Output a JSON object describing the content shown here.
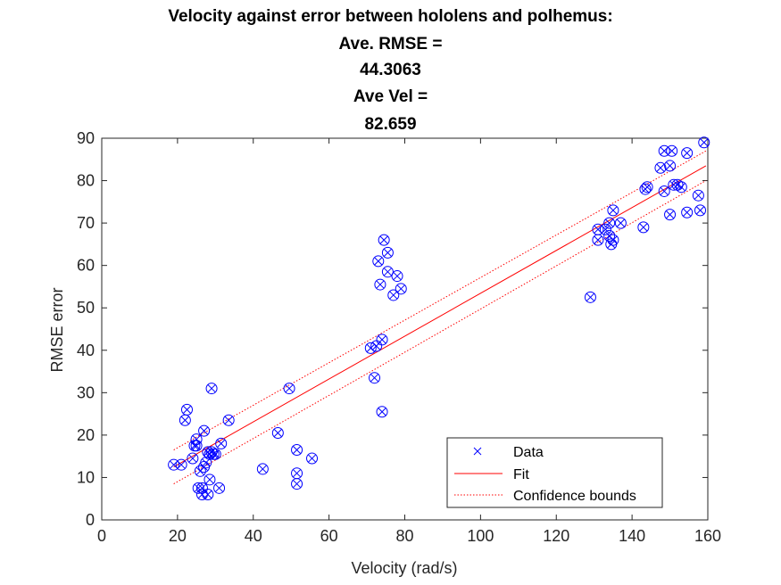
{
  "chart_data": {
    "type": "scatter",
    "title_lines": [
      "Velocity against error between hololens and polhemus:",
      "Ave. RMSE =",
      "44.3063",
      "Ave Vel =",
      "82.659"
    ],
    "xlabel": "Velocity (rad/s)",
    "ylabel": "RMSE error",
    "xlim": [
      0,
      160
    ],
    "ylim": [
      0,
      90
    ],
    "xticks": [
      0,
      20,
      40,
      60,
      80,
      100,
      120,
      140,
      160
    ],
    "yticks": [
      0,
      10,
      20,
      30,
      40,
      50,
      60,
      70,
      80,
      90
    ],
    "grid": false,
    "legend_position": "bottom-right",
    "legend": [
      "Data",
      "Fit",
      "Confidence bounds"
    ],
    "colors": {
      "data": "#0000ff",
      "fit": "#ff0000",
      "bounds": "#ff0000",
      "axis": "#262626"
    },
    "series": [
      {
        "name": "Data",
        "marker": "x-in-circle",
        "points": [
          [
            19,
            13
          ],
          [
            21,
            13
          ],
          [
            22,
            23.5
          ],
          [
            22.5,
            26
          ],
          [
            24,
            14.5
          ],
          [
            24.5,
            17.5
          ],
          [
            25,
            19
          ],
          [
            25,
            17.5
          ],
          [
            25.5,
            7.5
          ],
          [
            26,
            11.5
          ],
          [
            26.5,
            7.5
          ],
          [
            26.5,
            6
          ],
          [
            27,
            21
          ],
          [
            27,
            12.5
          ],
          [
            27.5,
            13.5
          ],
          [
            28,
            16
          ],
          [
            28,
            6
          ],
          [
            28.5,
            15.5
          ],
          [
            28.5,
            9.5
          ],
          [
            29,
            31
          ],
          [
            29,
            16
          ],
          [
            29.5,
            15.5
          ],
          [
            30,
            15.5
          ],
          [
            31,
            7.5
          ],
          [
            31.5,
            18
          ],
          [
            33.5,
            23.5
          ],
          [
            42.5,
            12
          ],
          [
            46.5,
            20.5
          ],
          [
            49.5,
            31
          ],
          [
            51.5,
            16.5
          ],
          [
            51.5,
            11
          ],
          [
            51.5,
            8.5
          ],
          [
            55.5,
            14.5
          ],
          [
            71,
            40.5
          ],
          [
            72,
            33.5
          ],
          [
            72.5,
            41
          ],
          [
            73,
            61
          ],
          [
            73.5,
            55.5
          ],
          [
            74,
            25.5
          ],
          [
            74,
            42.5
          ],
          [
            74.5,
            66
          ],
          [
            75.5,
            58.5
          ],
          [
            75.5,
            63
          ],
          [
            77,
            53
          ],
          [
            78,
            57.5
          ],
          [
            79,
            54.5
          ],
          [
            129,
            52.5
          ],
          [
            131,
            68.5
          ],
          [
            131,
            66
          ],
          [
            133,
            68.5
          ],
          [
            134,
            70
          ],
          [
            134,
            67
          ],
          [
            134.5,
            65
          ],
          [
            135,
            73
          ],
          [
            135,
            66
          ],
          [
            137,
            70
          ],
          [
            143,
            69
          ],
          [
            143.5,
            78
          ],
          [
            144,
            78.5
          ],
          [
            147.5,
            83
          ],
          [
            148.5,
            87
          ],
          [
            148.5,
            77.5
          ],
          [
            150,
            72
          ],
          [
            150,
            83.5
          ],
          [
            150.5,
            87
          ],
          [
            151,
            79
          ],
          [
            152,
            79
          ],
          [
            153,
            78.5
          ],
          [
            154.5,
            72.5
          ],
          [
            154.5,
            86.5
          ],
          [
            157.5,
            76.5
          ],
          [
            158,
            73
          ],
          [
            159,
            89
          ]
        ]
      },
      {
        "name": "Fit",
        "points": [
          [
            19,
            12.5
          ],
          [
            159.5,
            83.5
          ]
        ]
      },
      {
        "name": "Confidence bounds",
        "upper": [
          [
            19,
            16.5
          ],
          [
            159.5,
            87
          ]
        ],
        "lower": [
          [
            19,
            8.5
          ],
          [
            159.5,
            80
          ]
        ]
      }
    ]
  }
}
